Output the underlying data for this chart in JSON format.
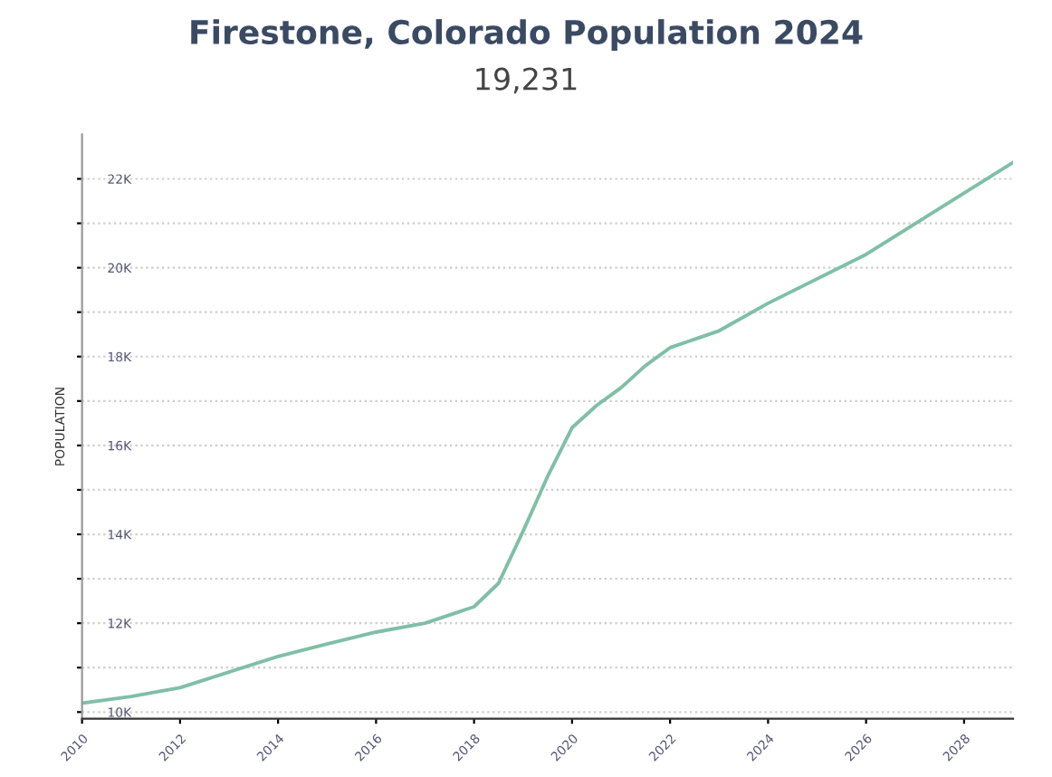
{
  "chart_data": {
    "type": "line",
    "title": "Firestone, Colorado Population 2024",
    "subtitle": "19,231",
    "ylabel": "POPULATION",
    "x": [
      2010,
      2011,
      2012,
      2013,
      2014,
      2015,
      2016,
      2017,
      2018,
      2018.5,
      2019,
      2019.5,
      2020,
      2020.5,
      2021,
      2021.5,
      2022,
      2023,
      2024,
      2026,
      2029
    ],
    "series": [
      {
        "color": "#7fbfa6",
        "values": [
          10200,
          10350,
          10550,
          10900,
          11250,
          11530,
          11800,
          12000,
          12370,
          12900,
          14070,
          15300,
          16400,
          16900,
          17300,
          17800,
          18200,
          18580,
          19200,
          20300,
          22370
        ]
      }
    ],
    "xlim": [
      2010,
      2029
    ],
    "xticks": [
      2010,
      2012,
      2014,
      2016,
      2018,
      2020,
      2022,
      2024,
      2026,
      2028
    ],
    "ylim": [
      9850,
      23000
    ],
    "yticks": [
      {
        "value": 10000,
        "label": "10K"
      },
      {
        "value": 11000,
        "label": null
      },
      {
        "value": 12000,
        "label": "12K"
      },
      {
        "value": 13000,
        "label": null
      },
      {
        "value": 14000,
        "label": "14K"
      },
      {
        "value": 15000,
        "label": null
      },
      {
        "value": 16000,
        "label": "16K"
      },
      {
        "value": 17000,
        "label": null
      },
      {
        "value": 18000,
        "label": "18K"
      },
      {
        "value": 19000,
        "label": null
      },
      {
        "value": 20000,
        "label": "20K"
      },
      {
        "value": 21000,
        "label": null
      },
      {
        "value": 22000,
        "label": "22K"
      }
    ],
    "grid": "y",
    "marker": "none",
    "line_style": "solid",
    "legend": false
  }
}
